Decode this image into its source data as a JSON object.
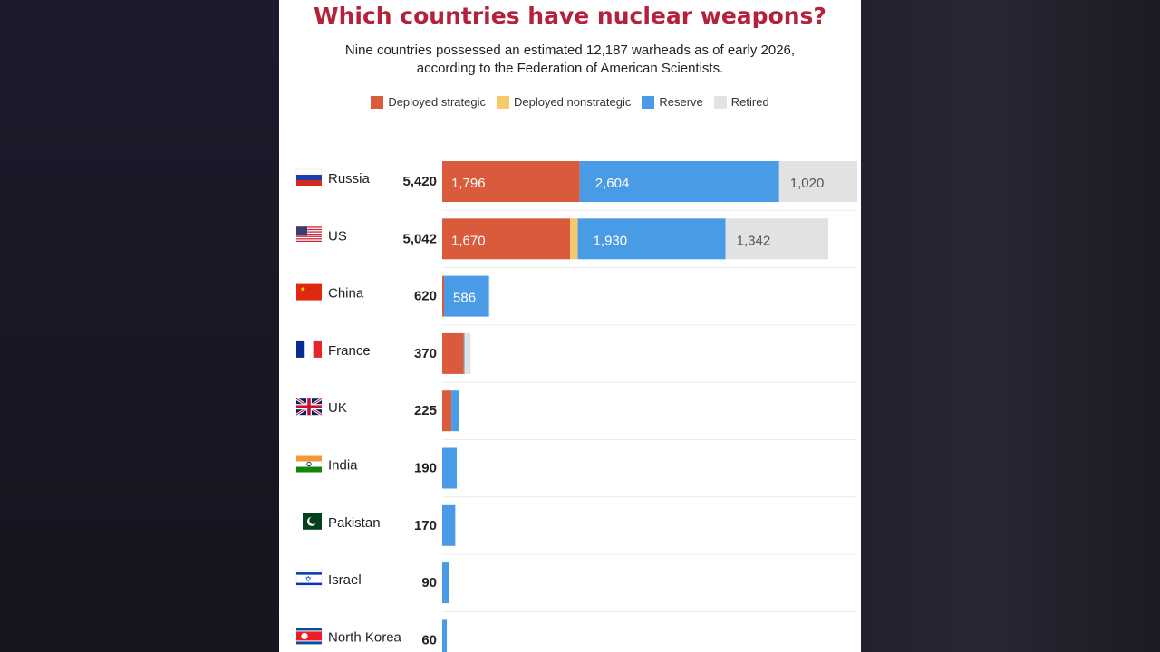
{
  "title": "Which countries have nuclear weapons?",
  "subtitle_line1": "Nine countries possessed an estimated 12,187 warheads as of early 2026,",
  "subtitle_line2": "according to the Federation of American Scientists.",
  "colors": {
    "deployed_strategic": "#d95b3b",
    "deployed_nonstrategic": "#f6c96a",
    "reserve": "#4a9be6",
    "retired": "#e2e1e4",
    "title": "#b5213a"
  },
  "legend": [
    {
      "label": "Deployed strategic",
      "color": "#d95b3b"
    },
    {
      "label": "Deployed nonstrategic",
      "color": "#f6c96a"
    },
    {
      "label": "Reserve",
      "color": "#4a9be6"
    },
    {
      "label": "Retired",
      "color": "#e2e1e4"
    }
  ],
  "chart_data": {
    "type": "bar",
    "orientation": "horizontal",
    "stacked": true,
    "categories": [
      "Russia",
      "US",
      "China",
      "France",
      "UK",
      "India",
      "Pakistan",
      "Israel",
      "North Korea"
    ],
    "totals": [
      5420,
      5042,
      620,
      370,
      225,
      190,
      170,
      90,
      60
    ],
    "total_labels": [
      "5,420",
      "5,042",
      "620",
      "370",
      "225",
      "190",
      "170",
      "90",
      "60"
    ],
    "series": [
      {
        "name": "Deployed strategic",
        "values": [
          1796,
          1670,
          24,
          280,
          120,
          0,
          0,
          0,
          0
        ],
        "labels": [
          "1,796",
          "1,670",
          "",
          "",
          "",
          "",
          "",
          "",
          ""
        ]
      },
      {
        "name": "Deployed nonstrategic",
        "values": [
          0,
          100,
          0,
          0,
          0,
          0,
          0,
          0,
          0
        ],
        "labels": [
          "",
          "",
          "",
          "",
          "",
          "",
          "",
          "",
          ""
        ]
      },
      {
        "name": "Reserve",
        "values": [
          2604,
          1930,
          586,
          10,
          105,
          190,
          170,
          90,
          60
        ],
        "labels": [
          "2,604",
          "1,930",
          "586",
          "",
          "",
          "",
          "",
          "",
          ""
        ]
      },
      {
        "name": "Retired",
        "values": [
          1020,
          1342,
          10,
          80,
          0,
          0,
          0,
          0,
          0
        ],
        "labels": [
          "1,020",
          "1,342",
          "",
          "",
          "",
          "",
          "",
          "",
          ""
        ]
      }
    ],
    "xlim": [
      0,
      5420
    ],
    "grid": false,
    "legend_position": "top"
  }
}
